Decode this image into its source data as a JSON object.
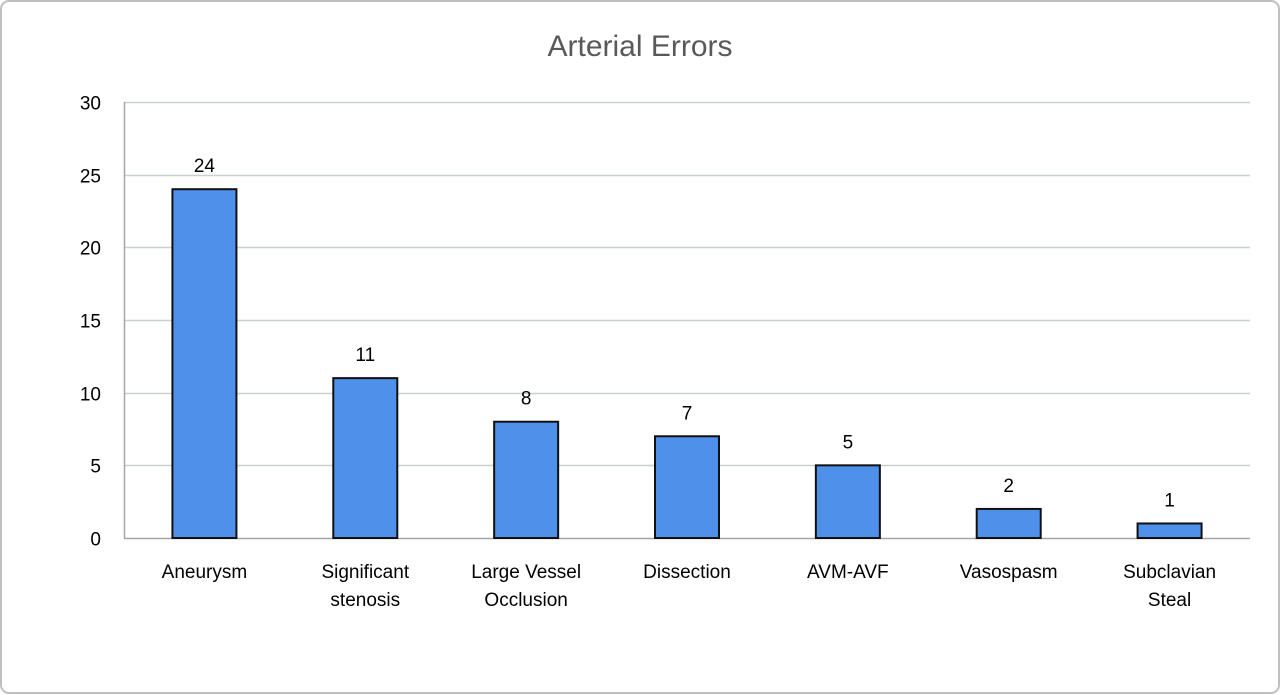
{
  "chart_data": {
    "type": "bar",
    "title": "Arterial Errors",
    "xlabel": "",
    "ylabel": "",
    "categories": [
      [
        "Aneurysm"
      ],
      [
        "Significant",
        "stenosis"
      ],
      [
        "Large Vessel",
        "Occlusion"
      ],
      [
        "Dissection"
      ],
      [
        "AVM-AVF"
      ],
      [
        "Vasospasm"
      ],
      [
        "Subclavian",
        "Steal"
      ]
    ],
    "values": [
      24,
      11,
      8,
      7,
      5,
      2,
      1
    ],
    "data_labels": [
      "24",
      "11",
      "8",
      "7",
      "5",
      "2",
      "1"
    ],
    "ylim": [
      0,
      30
    ],
    "yticks": [
      0,
      5,
      10,
      15,
      20,
      25,
      30
    ],
    "ytick_labels": [
      "0",
      "5",
      "10",
      "15",
      "20",
      "25",
      "30"
    ],
    "grid": true,
    "legend": "none",
    "colors": {
      "bar_fill": "#4f90ea",
      "bar_stroke": "#111111",
      "grid": "#c8d0d0",
      "axis": "#a6a6a6",
      "title": "#595959",
      "frame": "#c0c0c0"
    }
  }
}
